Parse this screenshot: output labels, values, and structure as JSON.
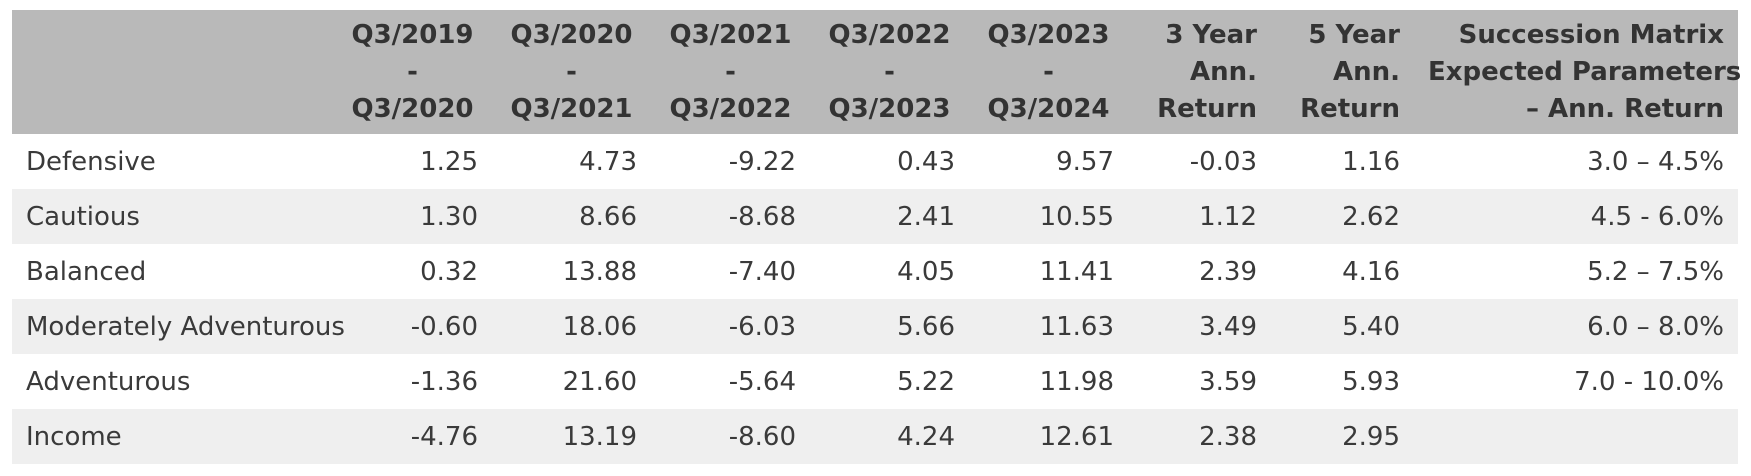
{
  "table": {
    "headers": {
      "blank": "",
      "periods": [
        {
          "from": "Q3/2019",
          "sep": "-",
          "to": "Q3/2020"
        },
        {
          "from": "Q3/2020",
          "sep": "-",
          "to": "Q3/2021"
        },
        {
          "from": "Q3/2021",
          "sep": "-",
          "to": "Q3/2022"
        },
        {
          "from": "Q3/2022",
          "sep": "-",
          "to": "Q3/2023"
        },
        {
          "from": "Q3/2023",
          "sep": "-",
          "to": "Q3/2024"
        }
      ],
      "three_year": [
        "3 Year",
        "Ann.",
        "Return"
      ],
      "five_year": [
        "5 Year",
        "Ann.",
        "Return"
      ],
      "succession": [
        "Succession Matrix",
        "Expected Parameters",
        "– Ann. Return"
      ]
    },
    "rows": [
      {
        "name": "Defensive",
        "values": [
          "1.25",
          "4.73",
          "-9.22",
          "0.43",
          "9.57",
          "-0.03",
          "1.16",
          "3.0 – 4.5%"
        ]
      },
      {
        "name": "Cautious",
        "values": [
          "1.30",
          "8.66",
          "-8.68",
          "2.41",
          "10.55",
          "1.12",
          "2.62",
          "4.5 - 6.0%"
        ]
      },
      {
        "name": "Balanced",
        "values": [
          "0.32",
          "13.88",
          "-7.40",
          "4.05",
          "11.41",
          "2.39",
          "4.16",
          "5.2 – 7.5%"
        ]
      },
      {
        "name": "Moderately Adventurous",
        "values": [
          "-0.60",
          "18.06",
          "-6.03",
          "5.66",
          "11.63",
          "3.49",
          "5.40",
          "6.0 – 8.0%"
        ]
      },
      {
        "name": "Adventurous",
        "values": [
          "-1.36",
          "21.60",
          "-5.64",
          "5.22",
          "11.98",
          "3.59",
          "5.93",
          "7.0 - 10.0%"
        ]
      },
      {
        "name": "Income",
        "values": [
          "-4.76",
          "13.19",
          "-8.60",
          "4.24",
          "12.61",
          "2.38",
          "2.95",
          ""
        ]
      }
    ]
  }
}
